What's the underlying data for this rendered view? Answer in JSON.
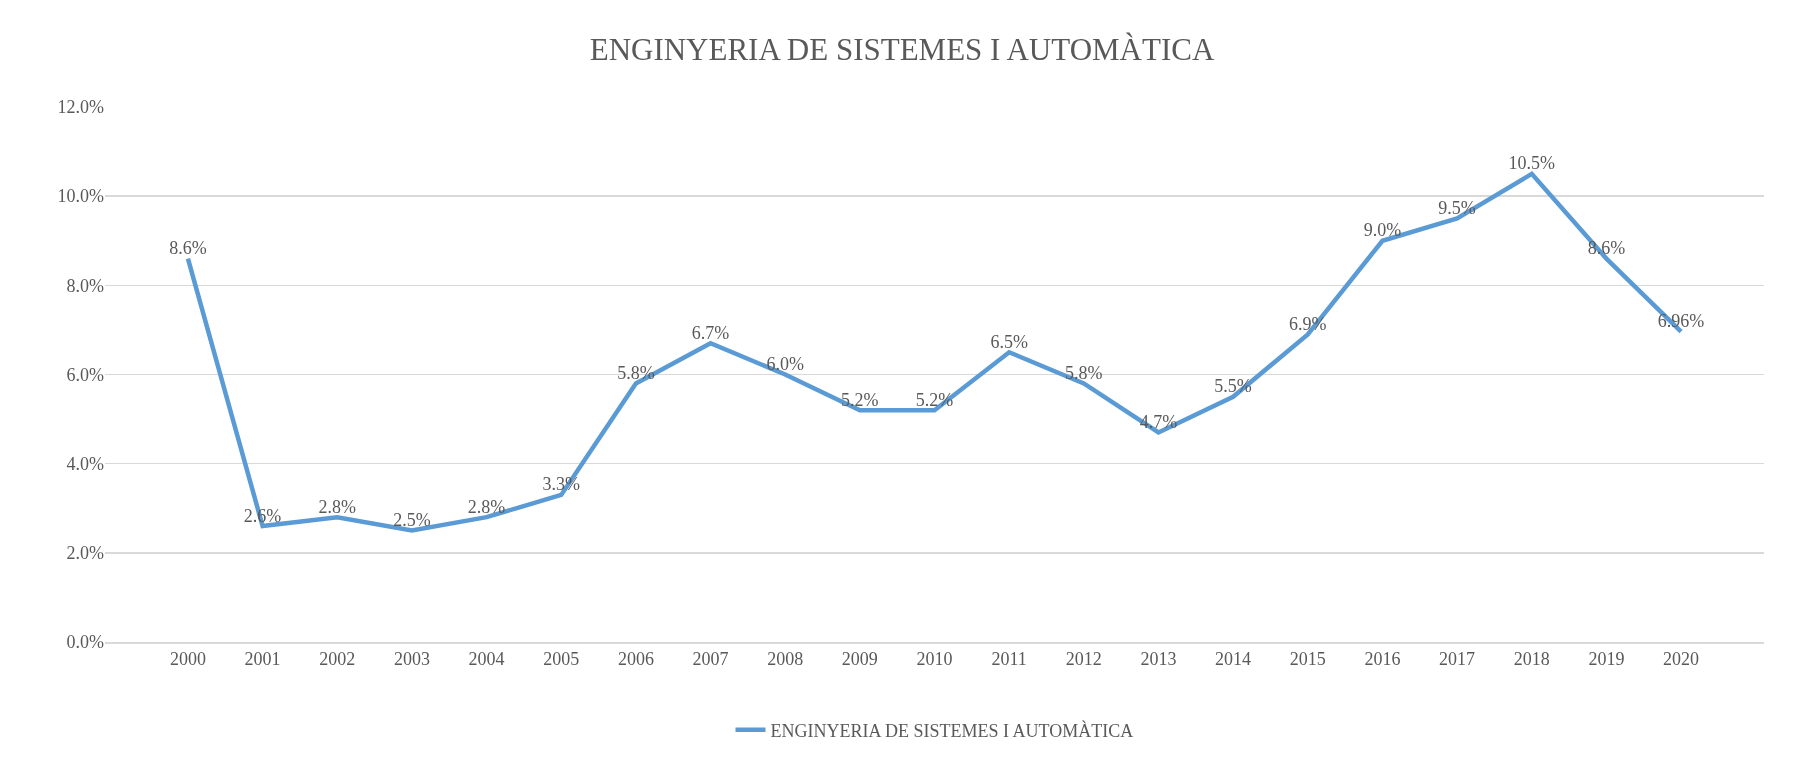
{
  "chart_data": {
    "type": "line",
    "title": "ENGINYERIA DE SISTEMES I AUTOMÀTICA",
    "categories": [
      "2000",
      "2001",
      "2002",
      "2003",
      "2004",
      "2005",
      "2006",
      "2007",
      "2008",
      "2009",
      "2010",
      "2011",
      "2012",
      "2013",
      "2014",
      "2015",
      "2016",
      "2017",
      "2018",
      "2019",
      "2020"
    ],
    "series": [
      {
        "name": "ENGINYERIA DE SISTEMES I AUTOMÀTICA",
        "color": "#5b9bd5",
        "values": [
          8.6,
          2.6,
          2.8,
          2.5,
          2.8,
          3.3,
          5.8,
          6.7,
          6.0,
          5.2,
          5.2,
          6.5,
          5.8,
          4.7,
          5.5,
          6.9,
          9.0,
          9.5,
          10.5,
          8.6,
          6.96
        ],
        "value_labels": [
          "8.6%",
          "2.6%",
          "2.8%",
          "2.5%",
          "2.8%",
          "3.3%",
          "5.8%",
          "6.7%",
          "6.0%",
          "5.2%",
          "5.2%",
          "6.5%",
          "5.8%",
          "4.7%",
          "5.5%",
          "6.9%",
          "9.0%",
          "9.5%",
          "10.5%",
          "8.6%",
          "6.96%"
        ]
      }
    ],
    "ylim": [
      0,
      12
    ],
    "yticks": [
      {
        "value": 0,
        "label": "0.0%"
      },
      {
        "value": 2,
        "label": "2.0%"
      },
      {
        "value": 4,
        "label": "4.0%"
      },
      {
        "value": 6,
        "label": "6.0%"
      },
      {
        "value": 8,
        "label": "8.0%"
      },
      {
        "value": 10,
        "label": "10.0%"
      },
      {
        "value": 12,
        "label": "12.0%"
      }
    ],
    "grid": "y",
    "legend": "bottom"
  }
}
